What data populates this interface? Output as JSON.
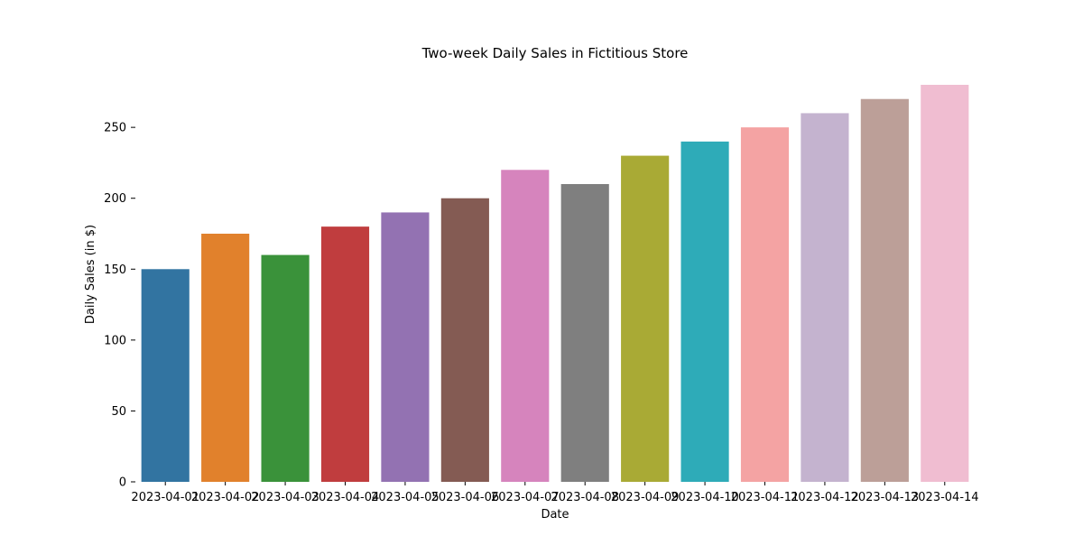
{
  "chart_data": {
    "type": "bar",
    "title": "Two-week Daily Sales in Fictitious Store",
    "xlabel": "Date",
    "ylabel": "Daily Sales (in $)",
    "categories": [
      "2023-04-01",
      "2023-04-02",
      "2023-04-03",
      "2023-04-04",
      "2023-04-05",
      "2023-04-06",
      "2023-04-07",
      "2023-04-08",
      "2023-04-09",
      "2023-04-10",
      "2023-04-11",
      "2023-04-12",
      "2023-04-13",
      "2023-04-14"
    ],
    "values": [
      150,
      175,
      160,
      180,
      190,
      200,
      220,
      210,
      230,
      240,
      250,
      260,
      270,
      280
    ],
    "colors": [
      "#3274a1",
      "#e1812c",
      "#3a923a",
      "#c03d3e",
      "#9372b2",
      "#845b53",
      "#d684bd",
      "#7f7f7f",
      "#a9aa35",
      "#2eabb8",
      "#f4a3a3",
      "#c4b3cf",
      "#bc9f98",
      "#f0bdd1"
    ],
    "ylim": [
      0,
      280
    ],
    "yticks": [
      0,
      50,
      100,
      150,
      200,
      250
    ],
    "grid": false,
    "legend": "none"
  }
}
